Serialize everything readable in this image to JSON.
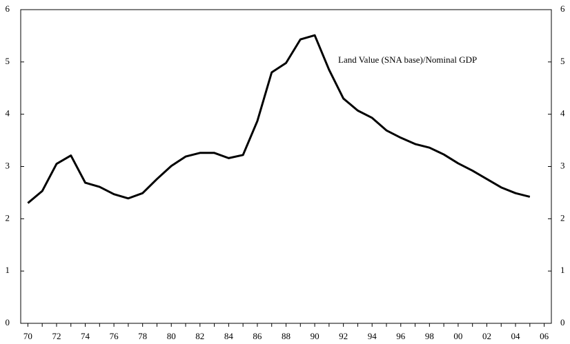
{
  "chart_data": {
    "type": "line",
    "categories": [
      "70",
      null,
      "72",
      null,
      "74",
      null,
      "76",
      null,
      "78",
      null,
      "80",
      null,
      "82",
      null,
      "84",
      null,
      "86",
      null,
      "88",
      null,
      "90",
      null,
      "92",
      null,
      "94",
      null,
      "96",
      null,
      "98",
      null,
      "00",
      null,
      "02",
      null,
      "04",
      null,
      "06"
    ],
    "series": [
      {
        "name": "Land Value (SNA base)/Nominal GDP",
        "color": "#000000",
        "values": [
          2.3,
          2.53,
          3.05,
          3.21,
          2.69,
          2.61,
          2.47,
          2.39,
          2.49,
          2.76,
          3.01,
          3.19,
          3.26,
          3.26,
          3.16,
          3.22,
          3.87,
          4.8,
          4.98,
          5.43,
          5.51,
          4.85,
          4.3,
          4.07,
          3.93,
          3.69,
          3.55,
          3.43,
          3.36,
          3.23,
          3.06,
          2.92,
          2.76,
          2.6,
          2.49,
          2.42,
          null
        ]
      }
    ],
    "ylim": [
      0,
      6
    ],
    "yticks": [
      0,
      1,
      2,
      3,
      4,
      5,
      6
    ],
    "y2lim": [
      0,
      6
    ],
    "y2ticks": [
      0,
      1,
      2,
      3,
      4,
      5,
      6
    ]
  }
}
